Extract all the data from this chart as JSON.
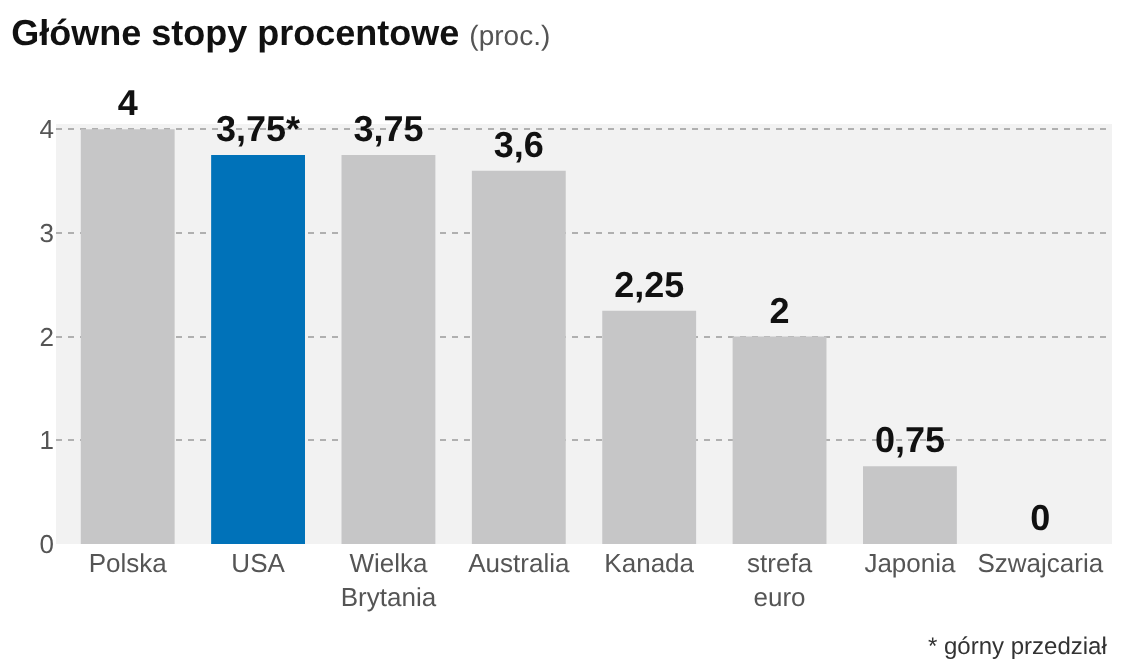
{
  "chart_data": {
    "type": "bar",
    "title": "Główne stopy procentowe",
    "subtitle": "(proc.)",
    "categories": [
      "Polska",
      "USA",
      "Wielka Brytania",
      "Australia",
      "Kanada",
      "strefa euro",
      "Japonia",
      "Szwajcaria"
    ],
    "values": [
      4,
      3.75,
      3.75,
      3.6,
      2.25,
      2,
      0.75,
      0
    ],
    "colors": [
      "#c6c6c7",
      "#0072b9",
      "#c6c6c7",
      "#c6c6c7",
      "#c6c6c7",
      "#c6c6c7",
      "#c6c6c7",
      "#c6c6c7"
    ],
    "value_labels": [
      "4",
      "3,75*",
      "3,75",
      "3,6",
      "2,25",
      "2",
      "0,75",
      "0"
    ],
    "ylim": [
      0,
      4.05
    ],
    "yticks": [
      0,
      1,
      2,
      3,
      4
    ],
    "grid": "y",
    "annotations": [
      "* górny przedział"
    ]
  }
}
